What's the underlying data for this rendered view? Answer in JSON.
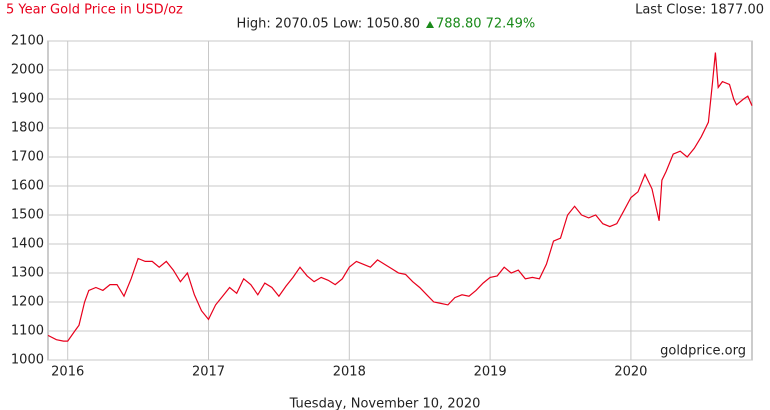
{
  "chart_data": {
    "type": "line",
    "title": "5 Year Gold Price in USD/oz",
    "last_close": "Last Close: 1877.00",
    "stats": "High: 2070.05 Low: 1050.80",
    "change": "788.80 72.49%",
    "watermark": "goldprice.org",
    "date_label": "Tuesday, November 10, 2020",
    "grid": true,
    "xlim": [
      2015.86,
      2020.86
    ],
    "xticks": [
      2016,
      2017,
      2018,
      2019,
      2020
    ],
    "ylim": [
      1000,
      2100
    ],
    "yticks": [
      1000,
      1100,
      1200,
      1300,
      1400,
      1500,
      1600,
      1700,
      1800,
      1900,
      2000,
      2100
    ],
    "x": [
      2015.86,
      2015.92,
      2015.97,
      2016.0,
      2016.05,
      2016.08,
      2016.12,
      2016.15,
      2016.2,
      2016.25,
      2016.3,
      2016.35,
      2016.4,
      2016.45,
      2016.5,
      2016.55,
      2016.6,
      2016.65,
      2016.7,
      2016.75,
      2016.8,
      2016.85,
      2016.9,
      2016.95,
      2017.0,
      2017.05,
      2017.1,
      2017.15,
      2017.2,
      2017.25,
      2017.3,
      2017.35,
      2017.4,
      2017.45,
      2017.5,
      2017.55,
      2017.6,
      2017.65,
      2017.7,
      2017.75,
      2017.8,
      2017.85,
      2017.9,
      2017.95,
      2018.0,
      2018.05,
      2018.1,
      2018.15,
      2018.2,
      2018.25,
      2018.3,
      2018.35,
      2018.4,
      2018.45,
      2018.5,
      2018.55,
      2018.6,
      2018.65,
      2018.7,
      2018.75,
      2018.8,
      2018.85,
      2018.9,
      2018.95,
      2019.0,
      2019.05,
      2019.1,
      2019.15,
      2019.2,
      2019.25,
      2019.3,
      2019.35,
      2019.4,
      2019.45,
      2019.5,
      2019.55,
      2019.6,
      2019.65,
      2019.7,
      2019.75,
      2019.8,
      2019.85,
      2019.9,
      2019.95,
      2020.0,
      2020.05,
      2020.1,
      2020.15,
      2020.2,
      2020.22,
      2020.25,
      2020.3,
      2020.35,
      2020.4,
      2020.45,
      2020.5,
      2020.55,
      2020.58,
      2020.6,
      2020.62,
      2020.65,
      2020.7,
      2020.73,
      2020.75,
      2020.8,
      2020.83,
      2020.86
    ],
    "series": [
      {
        "name": "Gold",
        "color": "#e8001c",
        "values": [
          1085,
          1070,
          1065,
          1065,
          1100,
          1120,
          1200,
          1240,
          1250,
          1240,
          1260,
          1260,
          1220,
          1280,
          1350,
          1340,
          1340,
          1320,
          1340,
          1310,
          1270,
          1300,
          1225,
          1170,
          1140,
          1190,
          1220,
          1250,
          1230,
          1280,
          1260,
          1225,
          1265,
          1250,
          1220,
          1255,
          1285,
          1320,
          1290,
          1270,
          1285,
          1275,
          1260,
          1280,
          1320,
          1340,
          1330,
          1320,
          1345,
          1330,
          1315,
          1300,
          1295,
          1270,
          1250,
          1225,
          1200,
          1195,
          1190,
          1215,
          1225,
          1220,
          1240,
          1265,
          1285,
          1290,
          1320,
          1300,
          1310,
          1280,
          1285,
          1280,
          1330,
          1410,
          1420,
          1500,
          1530,
          1500,
          1490,
          1500,
          1470,
          1460,
          1470,
          1515,
          1560,
          1580,
          1640,
          1590,
          1480,
          1620,
          1650,
          1710,
          1720,
          1700,
          1730,
          1770,
          1820,
          1960,
          2060,
          1940,
          1960,
          1950,
          1900,
          1880,
          1900,
          1910,
          1877
        ]
      }
    ]
  }
}
